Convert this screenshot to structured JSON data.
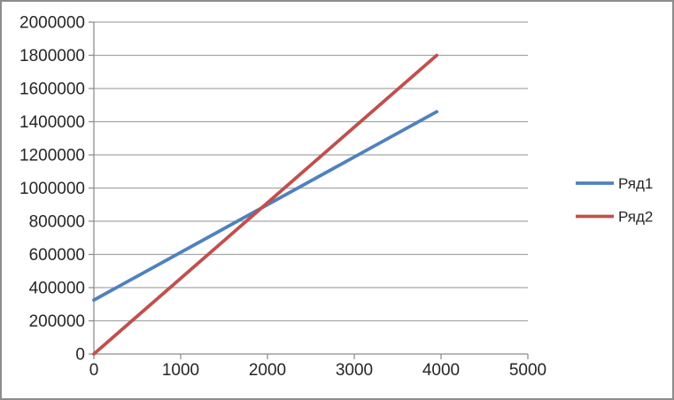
{
  "window": {
    "background_color": "#ffffff",
    "border_color": "#8c8c8c"
  },
  "chart_data": {
    "type": "line",
    "title": "",
    "xlabel": "",
    "ylabel": "",
    "xlim": [
      0,
      5000
    ],
    "ylim": [
      0,
      2000000
    ],
    "x_tick_step": 1000,
    "y_tick_step": 200000,
    "x_tick_labels": [
      "0",
      "1000",
      "2000",
      "3000",
      "4000",
      "5000"
    ],
    "y_tick_labels": [
      "0",
      "200000",
      "400000",
      "600000",
      "800000",
      "1000000",
      "1200000",
      "1400000",
      "1600000",
      "1800000",
      "2000000"
    ],
    "grid": "horizontal-only",
    "legend_position": "right",
    "gridline_color": "#a6a6a6",
    "axis_color": "#8e8e8e",
    "tick_label_color": "#262626",
    "series": [
      {
        "name": "Ряд1",
        "color": "#4f81bd",
        "x": [
          0,
          3950
        ],
        "y": [
          325000,
          1460000
        ]
      },
      {
        "name": "Ряд2",
        "color": "#c0504d",
        "x": [
          0,
          3950
        ],
        "y": [
          0,
          1800000
        ]
      }
    ]
  }
}
